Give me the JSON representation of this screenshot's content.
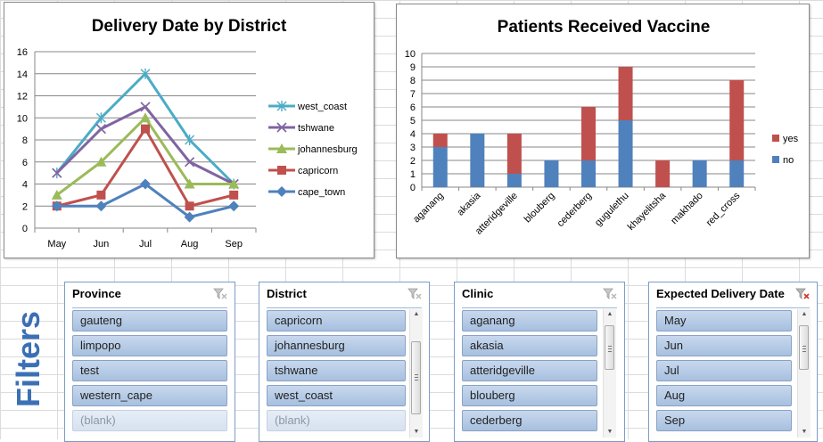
{
  "filters_label": "Filters",
  "charts": [
    {
      "id": "delivery",
      "chart_data": {
        "type": "line",
        "title": "Delivery Date by District",
        "categories": [
          "May",
          "Jun",
          "Jul",
          "Aug",
          "Sep"
        ],
        "ylim": [
          0,
          16
        ],
        "yticks": [
          0,
          2,
          4,
          6,
          8,
          10,
          12,
          14,
          16
        ],
        "grid": true,
        "legend": "right",
        "series": [
          {
            "name": "west_coast",
            "values": [
              5,
              10,
              14,
              8,
              4
            ],
            "color": "#4bacc6",
            "marker": "star"
          },
          {
            "name": "tshwane",
            "values": [
              5,
              9,
              11,
              6,
              4
            ],
            "color": "#8064a2",
            "marker": "x"
          },
          {
            "name": "johannesburg",
            "values": [
              3,
              6,
              10,
              4,
              4
            ],
            "color": "#9bbb59",
            "marker": "triangle"
          },
          {
            "name": "capricorn",
            "values": [
              2,
              3,
              9,
              2,
              3
            ],
            "color": "#c0504d",
            "marker": "square"
          },
          {
            "name": "cape_town",
            "values": [
              2,
              2,
              4,
              1,
              2
            ],
            "color": "#4f81bd",
            "marker": "diamond"
          }
        ]
      }
    },
    {
      "id": "vaccine",
      "chart_data": {
        "type": "bar",
        "stacked": true,
        "title": "Patients Received Vaccine",
        "categories": [
          "aganang",
          "akasia",
          "atteridgeville",
          "blouberg",
          "cederberg",
          "gugulethu",
          "khayelitsha",
          "makhado",
          "red_cross"
        ],
        "ylim": [
          0,
          10
        ],
        "yticks": [
          0,
          1,
          2,
          3,
          4,
          5,
          6,
          7,
          8,
          9,
          10
        ],
        "grid": true,
        "legend": "right",
        "series": [
          {
            "name": "no",
            "values": [
              3,
              4,
              1,
              2,
              2,
              5,
              0,
              2,
              2
            ],
            "color": "#4f81bd"
          },
          {
            "name": "yes",
            "values": [
              1,
              0,
              3,
              0,
              4,
              4,
              2,
              0,
              6
            ],
            "color": "#c0504d"
          }
        ]
      }
    }
  ],
  "slicers": [
    {
      "title": "Province",
      "items": [
        "gauteng",
        "limpopo",
        "test",
        "western_cape",
        "(blank)"
      ],
      "blank_last": true,
      "scrollbar": false
    },
    {
      "title": "District",
      "items": [
        "capricorn",
        "johannesburg",
        "tshwane",
        "west_coast",
        "(blank)"
      ],
      "blank_last": true,
      "scrollbar": true
    },
    {
      "title": "Clinic",
      "items": [
        "aganang",
        "akasia",
        "atteridgeville",
        "blouberg",
        "cederberg"
      ],
      "blank_last": false,
      "scrollbar": true
    },
    {
      "title": "Expected Delivery Date",
      "items": [
        "May",
        "Jun",
        "Jul",
        "Aug",
        "Sep"
      ],
      "blank_last": false,
      "scrollbar": true,
      "filtered": true
    }
  ]
}
